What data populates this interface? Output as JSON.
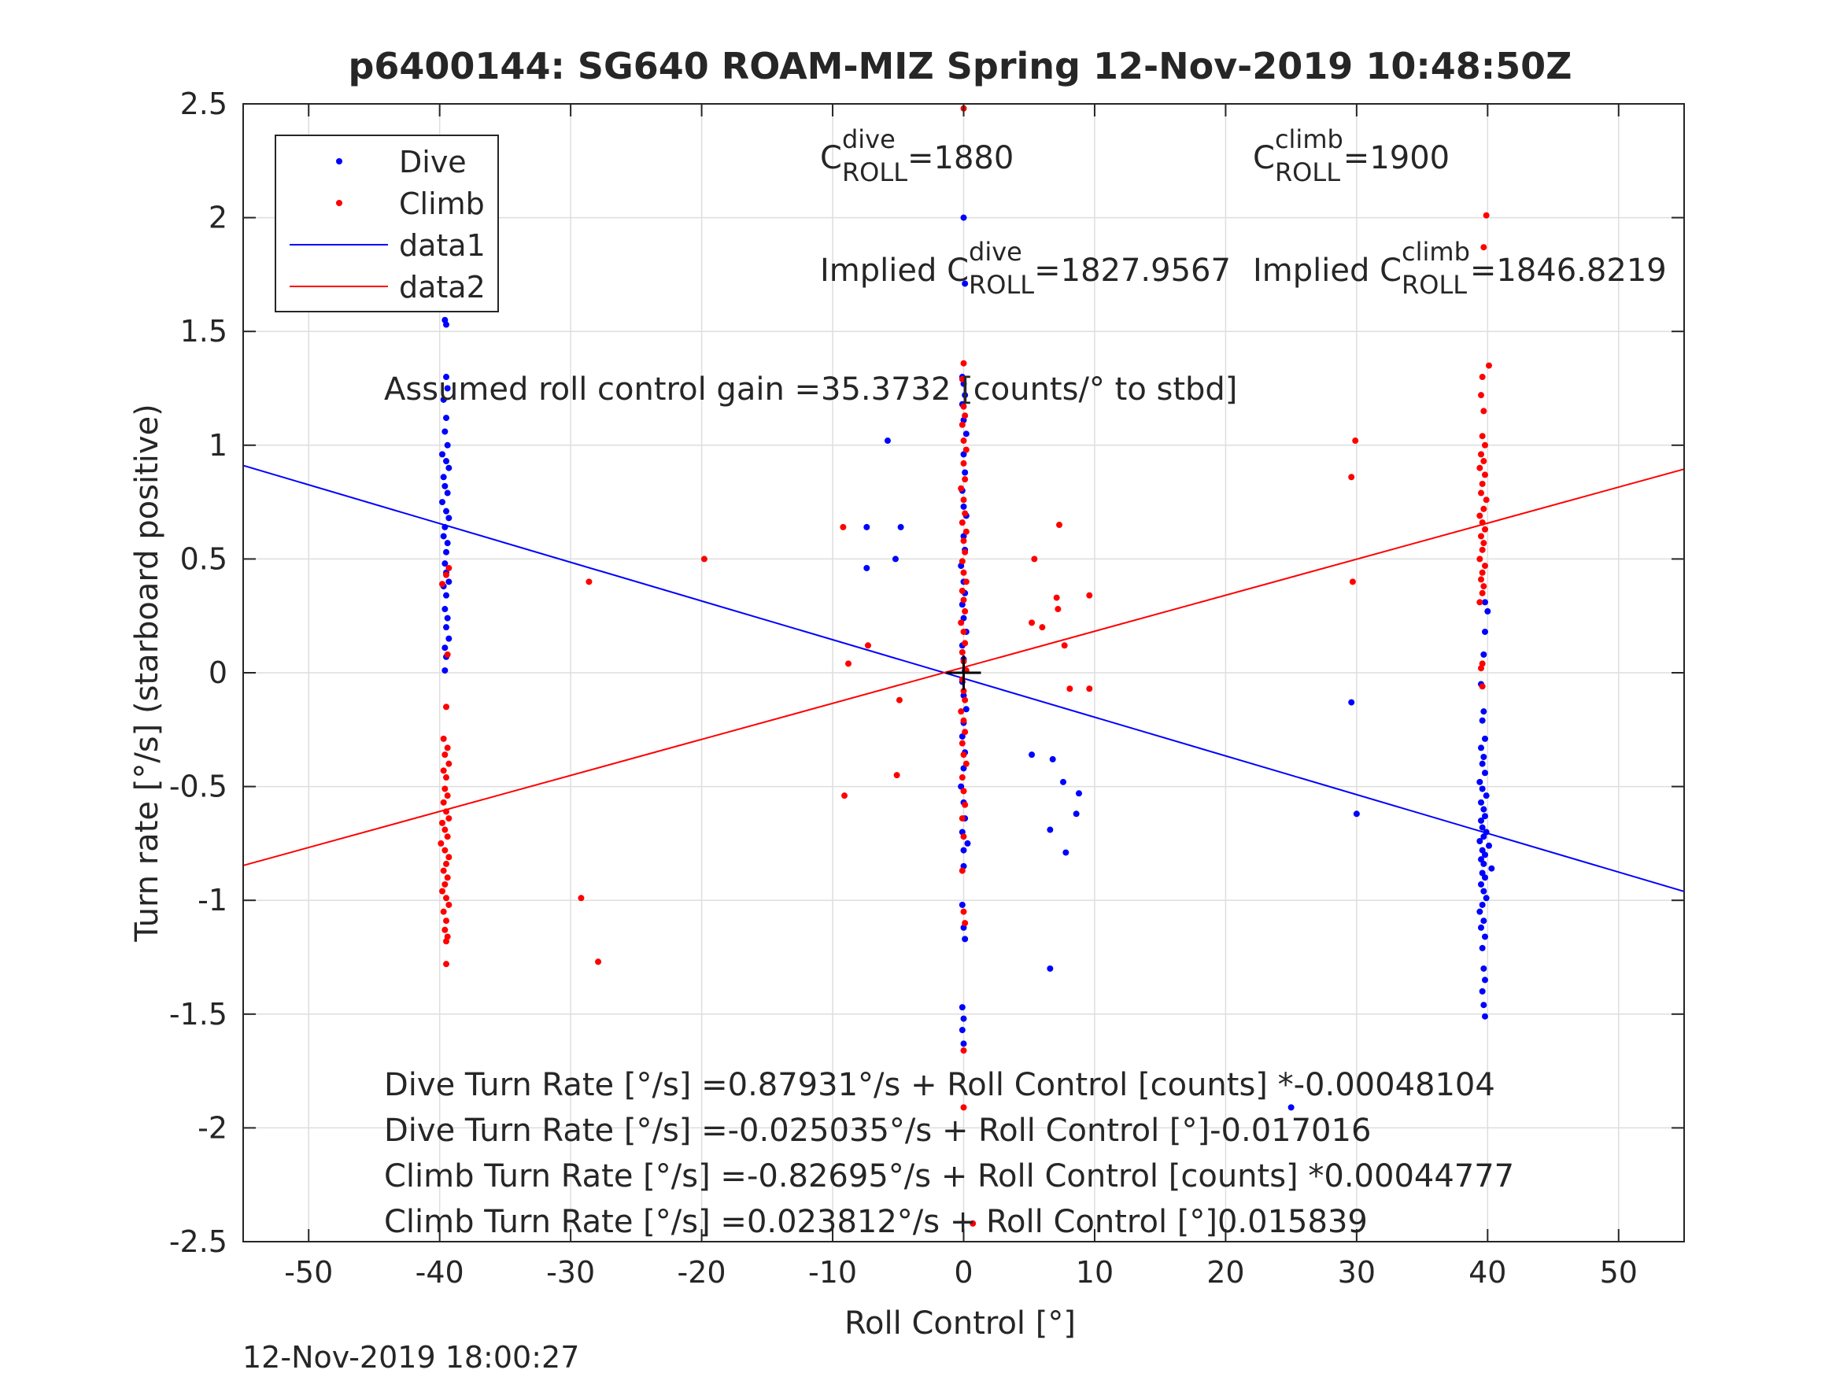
{
  "chart_data": {
    "type": "scatter",
    "title": "p6400144: SG640 ROAM-MIZ Spring 12-Nov-2019 10:48:50Z",
    "xlabel": "Roll Control [°]",
    "ylabel": "Turn rate [°/s] (starboard positive)",
    "xlim": [
      -55,
      55
    ],
    "ylim": [
      -2.5,
      2.5
    ],
    "xticks": [
      "-50",
      "-40",
      "-30",
      "-20",
      "-10",
      "0",
      "10",
      "20",
      "30",
      "40",
      "50"
    ],
    "yticks": [
      "2.5",
      "2",
      "1.5",
      "1",
      "0.5",
      "0",
      "-0.5",
      "-1",
      "-1.5",
      "-2",
      "-2.5"
    ],
    "grid": true,
    "legend_position": "top-left",
    "legend": [
      "Dive",
      "Climb",
      "data1",
      "data2"
    ],
    "colors": {
      "dive": "#0000ff",
      "climb": "#ff0000"
    },
    "fit_lines": [
      {
        "name": "data1",
        "color": "#0000ff",
        "x": [
          -55,
          55
        ],
        "y": [
          0.911,
          -0.961
        ]
      },
      {
        "name": "data2",
        "color": "#ff0000",
        "x": [
          -55,
          55
        ],
        "y": [
          -0.847,
          0.895
        ]
      }
    ],
    "origin_marker": {
      "x": 0,
      "y": 0
    },
    "series": [
      {
        "name": "Dive",
        "color": "#0000ff",
        "points": [
          [
            -39.6,
            1.55
          ],
          [
            -39.5,
            1.53
          ],
          [
            -39.5,
            1.3
          ],
          [
            -39.4,
            1.25
          ],
          [
            -39.7,
            1.2
          ],
          [
            -39.5,
            1.12
          ],
          [
            -39.6,
            1.06
          ],
          [
            -39.4,
            1.0
          ],
          [
            -39.8,
            0.96
          ],
          [
            -39.5,
            0.93
          ],
          [
            -39.3,
            0.9
          ],
          [
            -39.7,
            0.86
          ],
          [
            -39.6,
            0.82
          ],
          [
            -39.4,
            0.79
          ],
          [
            -39.8,
            0.75
          ],
          [
            -39.5,
            0.71
          ],
          [
            -39.3,
            0.68
          ],
          [
            -39.6,
            0.64
          ],
          [
            -39.7,
            0.6
          ],
          [
            -39.4,
            0.57
          ],
          [
            -39.5,
            0.53
          ],
          [
            -39.6,
            0.48
          ],
          [
            -39.5,
            0.44
          ],
          [
            -39.3,
            0.4
          ],
          [
            -39.7,
            0.38
          ],
          [
            -39.5,
            0.34
          ],
          [
            -39.6,
            0.28
          ],
          [
            -39.4,
            0.24
          ],
          [
            -39.5,
            0.2
          ],
          [
            -39.3,
            0.15
          ],
          [
            -39.6,
            0.11
          ],
          [
            -39.5,
            0.07
          ],
          [
            -39.6,
            0.01
          ],
          [
            0.0,
            2.0
          ],
          [
            0.1,
            1.71
          ],
          [
            -0.1,
            1.3
          ],
          [
            0.0,
            1.27
          ],
          [
            0.1,
            1.22
          ],
          [
            -0.1,
            1.18
          ],
          [
            0.0,
            1.11
          ],
          [
            0.2,
            1.05
          ],
          [
            0.0,
            0.96
          ],
          [
            0.1,
            0.88
          ],
          [
            -0.1,
            0.8
          ],
          [
            0.0,
            0.73
          ],
          [
            0.2,
            0.69
          ],
          [
            0.0,
            0.6
          ],
          [
            0.1,
            0.54
          ],
          [
            -0.2,
            0.47
          ],
          [
            0.0,
            0.4
          ],
          [
            0.1,
            0.35
          ],
          [
            -0.1,
            0.3
          ],
          [
            0.0,
            0.24
          ],
          [
            0.2,
            0.18
          ],
          [
            -0.1,
            0.12
          ],
          [
            0.0,
            0.06
          ],
          [
            0.1,
            0.01
          ],
          [
            -0.1,
            -0.04
          ],
          [
            0.0,
            -0.1
          ],
          [
            0.2,
            -0.16
          ],
          [
            0.0,
            -0.22
          ],
          [
            -0.1,
            -0.28
          ],
          [
            0.1,
            -0.35
          ],
          [
            0.0,
            -0.42
          ],
          [
            -0.2,
            -0.5
          ],
          [
            0.0,
            -0.57
          ],
          [
            0.1,
            -0.64
          ],
          [
            -0.1,
            -0.7
          ],
          [
            0.0,
            -0.78
          ],
          [
            0.3,
            -0.75
          ],
          [
            0.0,
            -0.85
          ],
          [
            -0.1,
            -1.02
          ],
          [
            0.0,
            -1.12
          ],
          [
            0.1,
            -1.17
          ],
          [
            -0.1,
            -1.47
          ],
          [
            0.0,
            -1.52
          ],
          [
            -0.1,
            -1.57
          ],
          [
            0.0,
            -1.63
          ],
          [
            -5.8,
            1.02
          ],
          [
            -7.4,
            0.64
          ],
          [
            -4.8,
            0.64
          ],
          [
            -5.2,
            0.5
          ],
          [
            -7.4,
            0.46
          ],
          [
            5.2,
            -0.36
          ],
          [
            6.8,
            -0.38
          ],
          [
            7.6,
            -0.48
          ],
          [
            8.8,
            -0.53
          ],
          [
            8.6,
            -0.62
          ],
          [
            6.6,
            -0.69
          ],
          [
            7.8,
            -0.79
          ],
          [
            6.6,
            -1.3
          ],
          [
            25.0,
            -1.91
          ],
          [
            29.6,
            -0.13
          ],
          [
            30.0,
            -0.62
          ],
          [
            39.8,
            0.31
          ],
          [
            40.0,
            0.27
          ],
          [
            39.8,
            0.18
          ],
          [
            39.7,
            0.08
          ],
          [
            39.5,
            -0.05
          ],
          [
            39.7,
            -0.17
          ],
          [
            39.6,
            -0.21
          ],
          [
            39.8,
            -0.29
          ],
          [
            39.5,
            -0.33
          ],
          [
            39.7,
            -0.37
          ],
          [
            39.6,
            -0.4
          ],
          [
            39.8,
            -0.44
          ],
          [
            39.4,
            -0.48
          ],
          [
            39.6,
            -0.51
          ],
          [
            39.9,
            -0.54
          ],
          [
            39.5,
            -0.57
          ],
          [
            39.7,
            -0.6
          ],
          [
            39.8,
            -0.63
          ],
          [
            39.5,
            -0.65
          ],
          [
            39.6,
            -0.68
          ],
          [
            39.9,
            -0.7
          ],
          [
            39.7,
            -0.72
          ],
          [
            39.4,
            -0.74
          ],
          [
            40.1,
            -0.76
          ],
          [
            39.6,
            -0.78
          ],
          [
            39.8,
            -0.8
          ],
          [
            39.5,
            -0.82
          ],
          [
            39.7,
            -0.84
          ],
          [
            40.3,
            -0.86
          ],
          [
            39.6,
            -0.88
          ],
          [
            39.8,
            -0.9
          ],
          [
            39.5,
            -0.93
          ],
          [
            39.7,
            -0.96
          ],
          [
            39.9,
            -0.99
          ],
          [
            39.6,
            -1.02
          ],
          [
            39.4,
            -1.05
          ],
          [
            39.7,
            -1.09
          ],
          [
            39.5,
            -1.12
          ],
          [
            39.8,
            -1.16
          ],
          [
            39.6,
            -1.21
          ],
          [
            39.7,
            -1.3
          ],
          [
            39.8,
            -1.35
          ],
          [
            39.6,
            -1.4
          ],
          [
            39.7,
            -1.46
          ],
          [
            39.8,
            -1.51
          ]
        ]
      },
      {
        "name": "Climb",
        "color": "#ff0000",
        "points": [
          [
            -39.3,
            0.46
          ],
          [
            -39.5,
            0.43
          ],
          [
            -39.8,
            0.39
          ],
          [
            -39.4,
            0.08
          ],
          [
            -39.5,
            -0.15
          ],
          [
            -39.7,
            -0.29
          ],
          [
            -39.4,
            -0.33
          ],
          [
            -39.6,
            -0.36
          ],
          [
            -39.3,
            -0.4
          ],
          [
            -39.7,
            -0.43
          ],
          [
            -39.5,
            -0.46
          ],
          [
            -39.6,
            -0.51
          ],
          [
            -39.4,
            -0.54
          ],
          [
            -39.7,
            -0.57
          ],
          [
            -39.5,
            -0.61
          ],
          [
            -39.3,
            -0.64
          ],
          [
            -39.8,
            -0.66
          ],
          [
            -39.6,
            -0.69
          ],
          [
            -39.4,
            -0.72
          ],
          [
            -39.9,
            -0.75
          ],
          [
            -39.6,
            -0.78
          ],
          [
            -39.3,
            -0.81
          ],
          [
            -39.5,
            -0.84
          ],
          [
            -39.7,
            -0.87
          ],
          [
            -39.4,
            -0.9
          ],
          [
            -39.6,
            -0.93
          ],
          [
            -39.8,
            -0.96
          ],
          [
            -39.5,
            -0.99
          ],
          [
            -39.3,
            -1.02
          ],
          [
            -39.7,
            -1.05
          ],
          [
            -39.5,
            -1.09
          ],
          [
            -39.6,
            -1.13
          ],
          [
            -39.4,
            -1.16
          ],
          [
            -39.5,
            -1.18
          ],
          [
            -39.5,
            -1.28
          ],
          [
            0.0,
            2.48
          ],
          [
            0.0,
            1.36
          ],
          [
            -0.1,
            1.29
          ],
          [
            0.0,
            1.17
          ],
          [
            0.1,
            1.13
          ],
          [
            -0.1,
            1.09
          ],
          [
            0.0,
            1.02
          ],
          [
            0.2,
            0.98
          ],
          [
            0.0,
            0.92
          ],
          [
            0.1,
            0.85
          ],
          [
            -0.2,
            0.81
          ],
          [
            0.0,
            0.76
          ],
          [
            0.1,
            0.7
          ],
          [
            -0.1,
            0.66
          ],
          [
            0.2,
            0.62
          ],
          [
            0.0,
            0.58
          ],
          [
            0.1,
            0.53
          ],
          [
            -0.1,
            0.49
          ],
          [
            0.0,
            0.44
          ],
          [
            0.2,
            0.4
          ],
          [
            -0.1,
            0.36
          ],
          [
            0.0,
            0.32
          ],
          [
            0.1,
            0.27
          ],
          [
            -0.2,
            0.22
          ],
          [
            0.0,
            0.18
          ],
          [
            0.1,
            0.13
          ],
          [
            -0.1,
            0.09
          ],
          [
            0.0,
            0.05
          ],
          [
            0.2,
            0.01
          ],
          [
            -0.1,
            -0.03
          ],
          [
            0.0,
            -0.08
          ],
          [
            0.1,
            -0.12
          ],
          [
            -0.2,
            -0.17
          ],
          [
            0.0,
            -0.21
          ],
          [
            0.1,
            -0.26
          ],
          [
            -0.1,
            -0.31
          ],
          [
            0.0,
            -0.36
          ],
          [
            0.2,
            -0.4
          ],
          [
            -0.1,
            -0.46
          ],
          [
            0.0,
            -0.52
          ],
          [
            0.1,
            -0.58
          ],
          [
            -0.1,
            -0.64
          ],
          [
            0.0,
            -0.72
          ],
          [
            -0.1,
            -0.87
          ],
          [
            0.0,
            -1.05
          ],
          [
            0.1,
            -1.1
          ],
          [
            0.0,
            -1.66
          ],
          [
            0.0,
            -1.91
          ],
          [
            0.7,
            -2.42
          ],
          [
            -28.6,
            0.4
          ],
          [
            -19.8,
            0.5
          ],
          [
            -29.2,
            -0.99
          ],
          [
            -27.9,
            -1.27
          ],
          [
            -9.2,
            0.64
          ],
          [
            -8.8,
            0.04
          ],
          [
            -7.3,
            0.12
          ],
          [
            -9.1,
            -0.54
          ],
          [
            -5.1,
            -0.45
          ],
          [
            -4.9,
            -0.12
          ],
          [
            5.2,
            0.22
          ],
          [
            5.4,
            0.5
          ],
          [
            6.0,
            0.2
          ],
          [
            7.1,
            0.33
          ],
          [
            7.2,
            0.28
          ],
          [
            7.3,
            0.65
          ],
          [
            7.7,
            0.12
          ],
          [
            8.1,
            -0.07
          ],
          [
            9.6,
            0.34
          ],
          [
            9.6,
            -0.07
          ],
          [
            29.6,
            0.86
          ],
          [
            29.7,
            0.4
          ],
          [
            29.9,
            1.02
          ],
          [
            39.9,
            2.01
          ],
          [
            39.7,
            1.87
          ],
          [
            40.1,
            1.35
          ],
          [
            39.6,
            1.3
          ],
          [
            39.5,
            1.22
          ],
          [
            39.7,
            1.15
          ],
          [
            39.6,
            1.04
          ],
          [
            39.8,
            1.0
          ],
          [
            39.5,
            0.96
          ],
          [
            39.7,
            0.93
          ],
          [
            39.4,
            0.9
          ],
          [
            39.8,
            0.87
          ],
          [
            39.6,
            0.83
          ],
          [
            39.5,
            0.79
          ],
          [
            39.9,
            0.76
          ],
          [
            39.7,
            0.72
          ],
          [
            39.4,
            0.69
          ],
          [
            39.6,
            0.66
          ],
          [
            39.8,
            0.63
          ],
          [
            39.5,
            0.6
          ],
          [
            39.7,
            0.57
          ],
          [
            39.6,
            0.54
          ],
          [
            39.4,
            0.5
          ],
          [
            39.8,
            0.47
          ],
          [
            39.6,
            0.44
          ],
          [
            39.5,
            0.41
          ],
          [
            39.7,
            0.38
          ],
          [
            39.6,
            0.35
          ],
          [
            39.4,
            0.31
          ],
          [
            39.6,
            0.04
          ],
          [
            39.5,
            0.02
          ],
          [
            39.6,
            -0.06
          ]
        ]
      }
    ],
    "annotations": [
      {
        "sym": "C",
        "sup": "dive",
        "sub": "ROLL",
        "text": " =1880"
      },
      {
        "sym": "C",
        "sup": "climb",
        "sub": "ROLL",
        "text": " =1900"
      },
      {
        "pre": "Implied ",
        "sym": "C",
        "sup": "dive",
        "sub": "ROLL",
        "text": " =1827.9567"
      },
      {
        "pre": "Implied ",
        "sym": "C",
        "sup": "climb",
        "sub": "ROLL",
        "text": " =1846.8219"
      },
      {
        "text": "Assumed roll control gain =35.3732 [counts/° to stbd]"
      }
    ],
    "fit_equations": [
      "Dive Turn Rate [°/s] =0.87931°/s + Roll Control [counts] *-0.00048104",
      "Dive Turn Rate [°/s] =-0.025035°/s + Roll Control [°]-0.017016",
      "Climb Turn Rate [°/s] =-0.82695°/s + Roll Control [counts] *0.00044777",
      "Climb Turn Rate [°/s] =0.023812°/s + Roll Control [°]0.015839"
    ],
    "timestamp": "12-Nov-2019 18:00:27"
  }
}
